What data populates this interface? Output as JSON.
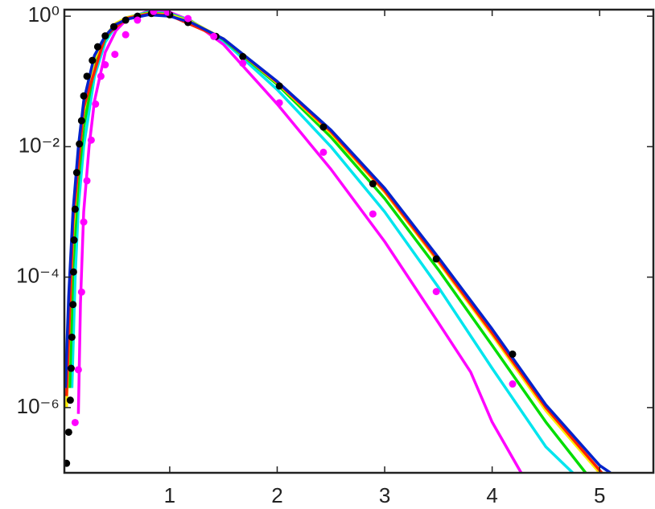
{
  "chart_data": {
    "type": "line",
    "xlim": [
      0.02,
      5.5
    ],
    "xticks": [
      1,
      2,
      3,
      4,
      5
    ],
    "ylim": [
      1e-07,
      1.26
    ],
    "ylog": true,
    "yticks": [
      {
        "value": 1,
        "label": "10⁰"
      },
      {
        "value": 0.01,
        "label": "10⁻²"
      },
      {
        "value": 0.0001,
        "label": "10⁻⁴"
      },
      {
        "value": 1e-06,
        "label": "10⁻⁶"
      }
    ],
    "series": [
      {
        "color": "#ff00ff",
        "mode": "line",
        "x": [
          0.15,
          0.17,
          0.2,
          0.25,
          0.3,
          0.4,
          0.5,
          0.6,
          0.8,
          1.0,
          1.2,
          1.5,
          2,
          2.5,
          3,
          3.5,
          3.8,
          4.0,
          4.27
        ],
        "values": [
          8e-07,
          4e-05,
          0.001,
          0.01,
          0.05,
          0.28,
          0.6,
          0.9,
          1.2,
          1.15,
          0.85,
          0.37,
          0.045,
          0.0045,
          0.00035,
          2e-05,
          3.5e-06,
          6e-07,
          1e-07
        ]
      },
      {
        "color": "#00e5ee",
        "mode": "line",
        "x": [
          0.09,
          0.12,
          0.15,
          0.2,
          0.3,
          0.4,
          0.5,
          0.6,
          0.8,
          1.0,
          1.2,
          1.5,
          2,
          2.5,
          3,
          3.5,
          4,
          4.5,
          4.75
        ],
        "values": [
          2e-06,
          0.0001,
          0.0012,
          0.01,
          0.12,
          0.4,
          0.72,
          0.95,
          1.15,
          1.1,
          0.84,
          0.42,
          0.075,
          0.01,
          0.001,
          7e-05,
          4e-06,
          2.5e-07,
          1e-07
        ]
      },
      {
        "color": "#00dd00",
        "mode": "line",
        "x": [
          0.07,
          0.1,
          0.15,
          0.2,
          0.3,
          0.4,
          0.5,
          0.6,
          0.8,
          1.0,
          1.2,
          1.5,
          2,
          2.5,
          3,
          3.5,
          4,
          4.5,
          4.87
        ],
        "values": [
          2e-06,
          0.00015,
          0.003,
          0.02,
          0.17,
          0.45,
          0.75,
          0.95,
          1.12,
          1.07,
          0.83,
          0.44,
          0.09,
          0.014,
          0.0016,
          0.00013,
          9e-06,
          6e-07,
          1e-07
        ]
      },
      {
        "color": "#ffee00",
        "mode": "line",
        "x": [
          0.04,
          0.07,
          0.1,
          0.15,
          0.2,
          0.3,
          0.4,
          0.5,
          0.6,
          0.8,
          1.0,
          1.2,
          1.5,
          2,
          2.5,
          3,
          3.5,
          4,
          4.5,
          5.0
        ],
        "values": [
          1e-06,
          3e-05,
          0.0005,
          0.006,
          0.035,
          0.22,
          0.5,
          0.78,
          0.95,
          1.1,
          1.05,
          0.82,
          0.45,
          0.095,
          0.016,
          0.002,
          0.00017,
          1.3e-05,
          9e-07,
          1e-07
        ]
      },
      {
        "color": "#ff2200",
        "mode": "line",
        "x": [
          0.04,
          0.1,
          0.2,
          0.4,
          0.6,
          0.8,
          1.0,
          1.5,
          2,
          2.5,
          3,
          3.5,
          4,
          4.5,
          5.02
        ],
        "values": [
          1.5e-06,
          0.0007,
          0.04,
          0.5,
          0.93,
          1.08,
          1.03,
          0.45,
          0.097,
          0.017,
          0.0021,
          0.00018,
          1.4e-05,
          1e-06,
          1e-07
        ]
      },
      {
        "color": "#0022cc",
        "mode": "line",
        "x": [
          0.03,
          0.06,
          0.1,
          0.15,
          0.2,
          0.3,
          0.4,
          0.5,
          0.6,
          0.8,
          1.0,
          1.2,
          1.5,
          2,
          2.5,
          3,
          3.5,
          4,
          4.5,
          5,
          5.1
        ],
        "values": [
          2e-06,
          5e-05,
          0.001,
          0.01,
          0.05,
          0.25,
          0.5,
          0.75,
          0.9,
          1.05,
          1.0,
          0.8,
          0.45,
          0.1,
          0.018,
          0.0023,
          0.0002,
          1.6e-05,
          1.1e-06,
          1.3e-07,
          1e-07
        ]
      },
      {
        "color": "#000000",
        "mode": "markers",
        "x": [
          0.04,
          0.06,
          0.075,
          0.083,
          0.09,
          0.1,
          0.105,
          0.11,
          0.12,
          0.135,
          0.16,
          0.18,
          0.2,
          0.23,
          0.28,
          0.33,
          0.4,
          0.48,
          0.59,
          0.7,
          0.83,
          1.0,
          1.17,
          1.43,
          1.68,
          2.02,
          2.43,
          2.89,
          3.48,
          4.19
        ],
        "values": [
          1.4e-07,
          4.2e-07,
          1.3e-06,
          4e-06,
          1.2e-05,
          3.8e-05,
          0.00012,
          0.00037,
          0.0011,
          0.004,
          0.011,
          0.025,
          0.06,
          0.12,
          0.21,
          0.34,
          0.5,
          0.69,
          0.87,
          1.0,
          1.1,
          1.05,
          0.8,
          0.49,
          0.24,
          0.085,
          0.02,
          0.0027,
          0.00019,
          6.6e-06
        ]
      },
      {
        "color": "#ff00ff",
        "mode": "markers",
        "x": [
          0.12,
          0.15,
          0.18,
          0.2,
          0.23,
          0.27,
          0.31,
          0.36,
          0.4,
          0.49,
          0.59,
          0.7,
          0.85,
          0.98,
          1.17,
          1.41,
          1.68,
          2.02,
          2.43,
          2.89,
          3.48,
          4.19
        ],
        "values": [
          5.9e-07,
          3.8e-06,
          5.9e-05,
          0.0007,
          0.003,
          0.0126,
          0.045,
          0.12,
          0.18,
          0.26,
          0.52,
          0.87,
          1.18,
          1.15,
          0.92,
          0.49,
          0.19,
          0.047,
          0.0082,
          0.00093,
          6e-05,
          2.3e-06
        ]
      }
    ]
  }
}
